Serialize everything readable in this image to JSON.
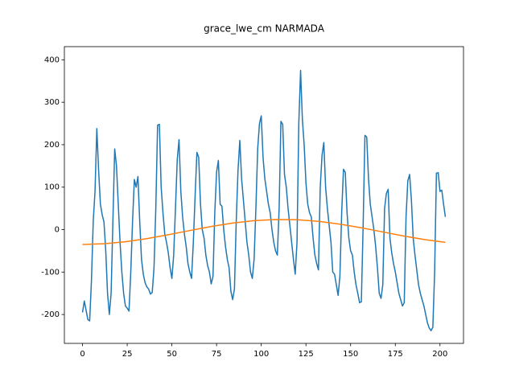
{
  "chart_data": {
    "type": "line",
    "title": "grace_lwe_cm NARMADA",
    "series": [
      {
        "color": "#1f77b4",
        "x": [
          0,
          1,
          2,
          3,
          4,
          5,
          6,
          7,
          8,
          9,
          10,
          11,
          12,
          13,
          14,
          15,
          16,
          17,
          18,
          19,
          20,
          21,
          22,
          23,
          24,
          25,
          26,
          27,
          28,
          29,
          30,
          31,
          32,
          33,
          34,
          35,
          36,
          37,
          38,
          39,
          40,
          41,
          42,
          43,
          44,
          45,
          46,
          47,
          48,
          49,
          50,
          51,
          52,
          53,
          54,
          55,
          56,
          57,
          58,
          59,
          60,
          61,
          62,
          63,
          64,
          65,
          66,
          67,
          68,
          69,
          70,
          71,
          72,
          73,
          74,
          75,
          76,
          77,
          78,
          79,
          80,
          81,
          82,
          83,
          84,
          85,
          86,
          87,
          88,
          89,
          90,
          91,
          92,
          93,
          94,
          95,
          96,
          97,
          98,
          99,
          100,
          101,
          102,
          103,
          104,
          105,
          106,
          107,
          108,
          109,
          110,
          111,
          112,
          113,
          114,
          115,
          116,
          117,
          118,
          119,
          120,
          121,
          122,
          123,
          124,
          125,
          126,
          127,
          128,
          129,
          130,
          131,
          132,
          133,
          134,
          135,
          136,
          137,
          138,
          139,
          140,
          141,
          142,
          143,
          144,
          145,
          146,
          147,
          148,
          149,
          150,
          151,
          152,
          153,
          154,
          155,
          156,
          157,
          158,
          159,
          160,
          161,
          162,
          163,
          164,
          165,
          166,
          167,
          168,
          169,
          170,
          171,
          172,
          173,
          174,
          175,
          176,
          177,
          178,
          179,
          180,
          181,
          182,
          183,
          184,
          185,
          186,
          187,
          188,
          189,
          190,
          191,
          192,
          193,
          194,
          195,
          196,
          197,
          198,
          199,
          200,
          201,
          202,
          203
        ],
        "values": [
          -195,
          -168,
          -190,
          -212,
          -215,
          -120,
          20,
          90,
          238,
          140,
          60,
          35,
          18,
          -50,
          -150,
          -200,
          -150,
          20,
          190,
          150,
          60,
          -30,
          -100,
          -150,
          -180,
          -185,
          -192,
          -100,
          20,
          118,
          100,
          125,
          20,
          -70,
          -105,
          -125,
          -135,
          -140,
          -152,
          -148,
          -90,
          50,
          246,
          248,
          100,
          40,
          -10,
          -30,
          -55,
          -90,
          -115,
          -60,
          50,
          165,
          212,
          90,
          30,
          -10,
          -40,
          -80,
          -100,
          -115,
          -30,
          80,
          182,
          170,
          60,
          0,
          -20,
          -60,
          -85,
          -100,
          -128,
          -110,
          40,
          135,
          163,
          60,
          55,
          0,
          -40,
          -70,
          -90,
          -145,
          -165,
          -140,
          20,
          140,
          210,
          120,
          70,
          20,
          -30,
          -60,
          -100,
          -115,
          -70,
          50,
          190,
          250,
          268,
          170,
          120,
          90,
          60,
          40,
          0,
          -30,
          -50,
          -60,
          50,
          255,
          248,
          130,
          100,
          50,
          10,
          -30,
          -70,
          -105,
          -30,
          250,
          375,
          260,
          200,
          110,
          60,
          40,
          30,
          -20,
          -60,
          -80,
          -95,
          100,
          175,
          205,
          100,
          50,
          10,
          -30,
          -100,
          -105,
          -130,
          -155,
          -110,
          40,
          142,
          135,
          40,
          -20,
          -50,
          -60,
          -100,
          -130,
          -150,
          -172,
          -170,
          10,
          222,
          218,
          120,
          60,
          30,
          0,
          -40,
          -90,
          -150,
          -162,
          -130,
          50,
          85,
          95,
          -20,
          -55,
          -80,
          -100,
          -125,
          -150,
          -165,
          -180,
          -172,
          30,
          115,
          130,
          70,
          -20,
          -60,
          -95,
          -130,
          -150,
          -165,
          -180,
          -200,
          -220,
          -232,
          -238,
          -230,
          -100,
          133,
          134,
          90,
          93,
          60,
          30
        ]
      },
      {
        "color": "#ff7f0e",
        "x": [
          0,
          12,
          24,
          36,
          48,
          60,
          72,
          84,
          96,
          108,
          120,
          132,
          144,
          156,
          168,
          180,
          192,
          203
        ],
        "values": [
          -35,
          -33.3,
          -28.6,
          -21.2,
          -12.1,
          -2.2,
          7.3,
          15.4,
          21.1,
          23.8,
          23.3,
          19.5,
          12.9,
          4.3,
          -5.5,
          -15.3,
          -23.9,
          -30
        ]
      }
    ],
    "xlim": [
      -10.15,
      213.15
    ],
    "xticks": [
      0,
      25,
      50,
      75,
      100,
      125,
      150,
      175,
      200
    ],
    "ylim": [
      -268,
      431
    ],
    "yticks": [
      -200,
      -100,
      0,
      100,
      200,
      300,
      400
    ],
    "grid": false
  }
}
